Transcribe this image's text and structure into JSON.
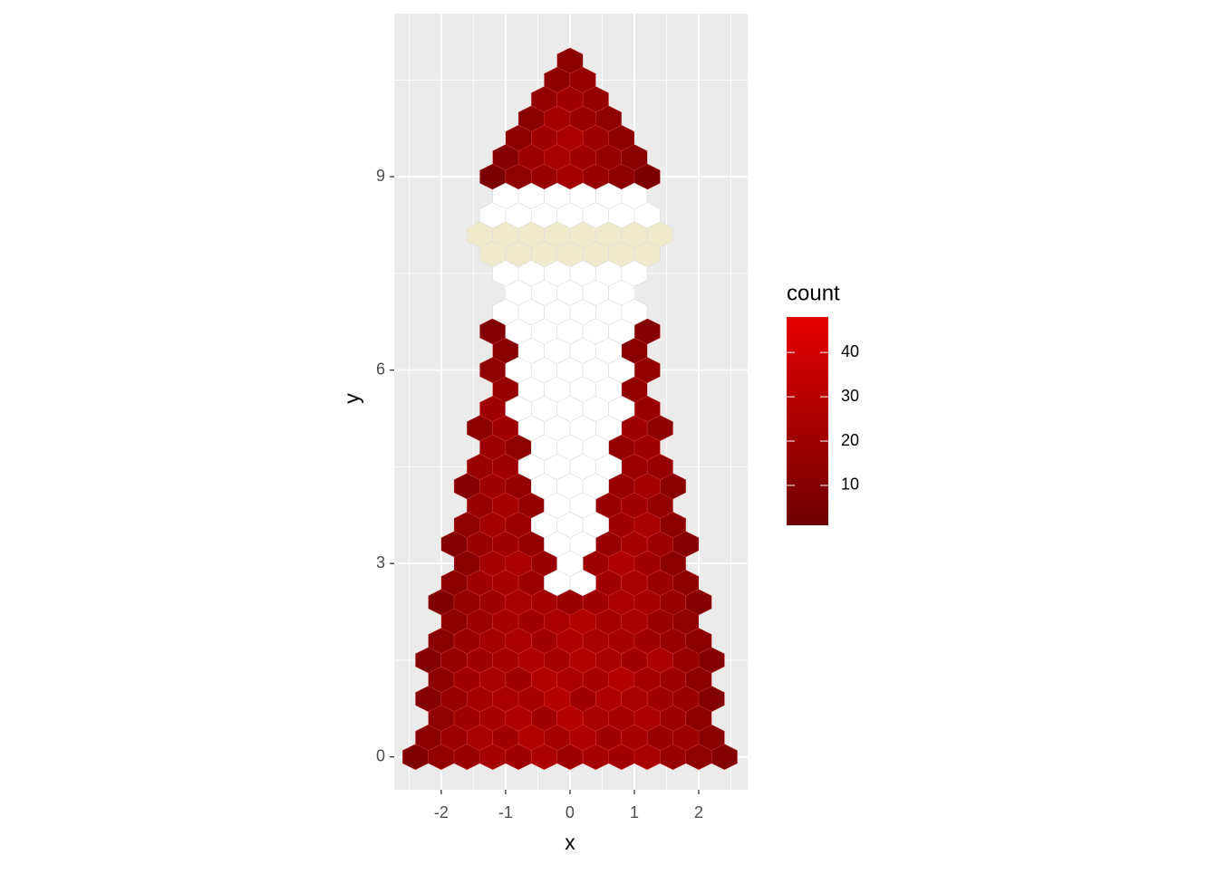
{
  "chart_data": {
    "type": "hexbin",
    "x_label": "x",
    "y_label": "y",
    "xlim": [
      -2.73,
      2.76
    ],
    "ylim": [
      -0.51,
      11.53
    ],
    "xticks": [
      -2,
      -1,
      0,
      1,
      2
    ],
    "yticks": [
      0,
      3,
      6,
      9
    ],
    "xminor": [
      -2.5,
      -1.5,
      -0.5,
      0.5,
      1.5,
      2.5
    ],
    "yminor": [
      1.5,
      4.5,
      7.5,
      10.5
    ],
    "grid": true,
    "binwidth": [
      0.4,
      0.3
    ],
    "legend": {
      "title": "count",
      "lim": [
        1,
        48
      ],
      "ticks": [
        10,
        20,
        30,
        40
      ],
      "low": "#6e0000",
      "high": "#e60000"
    },
    "layers": [
      {
        "rows": [
          {
            "y": 0,
            "x": [
              -2.4,
              -2.0,
              -1.6,
              -1.2,
              -0.8,
              -0.4,
              0,
              0.4,
              0.8,
              1.2,
              1.6,
              2.0,
              2.4
            ],
            "count": [
              8,
              15,
              18,
              22,
              20,
              25,
              19,
              23,
              21,
              24,
              17,
              14,
              9
            ]
          },
          {
            "y": 0.3,
            "x": [
              -2.2,
              -1.8,
              -1.4,
              -1.0,
              -0.6,
              -0.2,
              0.2,
              0.6,
              1.0,
              1.4,
              1.8,
              2.2
            ],
            "count": [
              12,
              19,
              24,
              21,
              27,
              22,
              26,
              20,
              23,
              18,
              20,
              11
            ]
          },
          {
            "y": 0.6,
            "x": [
              -2.0,
              -1.6,
              -1.2,
              -0.8,
              -0.4,
              0,
              0.4,
              0.8,
              1.2,
              1.6,
              2.0
            ],
            "count": [
              14,
              20,
              23,
              26,
              21,
              28,
              24,
              22,
              25,
              19,
              13
            ]
          },
          {
            "y": 0.9,
            "x": [
              -2.2,
              -1.8,
              -1.4,
              -1.0,
              -0.6,
              -0.2,
              0.2,
              0.6,
              1.0,
              1.4,
              1.8,
              2.2
            ],
            "count": [
              10,
              17,
              22,
              25,
              23,
              29,
              21,
              26,
              24,
              20,
              18,
              9
            ]
          },
          {
            "y": 1.2,
            "x": [
              -2.0,
              -1.6,
              -1.2,
              -0.8,
              -0.4,
              0,
              0.4,
              0.8,
              1.2,
              1.6,
              2.0
            ],
            "count": [
              13,
              21,
              24,
              20,
              27,
              25,
              23,
              28,
              22,
              19,
              12
            ]
          },
          {
            "y": 1.5,
            "x": [
              -2.2,
              -1.8,
              -1.4,
              -1.0,
              -0.6,
              -0.2,
              0.2,
              0.6,
              1.0,
              1.4,
              1.8,
              2.2
            ],
            "count": [
              9,
              16,
              20,
              23,
              26,
              22,
              27,
              24,
              21,
              25,
              17,
              10
            ]
          },
          {
            "y": 1.8,
            "x": [
              -2.0,
              -1.6,
              -1.2,
              -0.8,
              -0.4,
              0,
              0.4,
              0.8,
              1.2,
              1.6,
              2.0
            ],
            "count": [
              11,
              18,
              22,
              25,
              21,
              26,
              24,
              23,
              20,
              17,
              12
            ]
          },
          {
            "y": 2.1,
            "x": [
              -1.8,
              -1.4,
              -1.0,
              -0.6,
              -0.2,
              0.2,
              0.6,
              1.0,
              1.4,
              1.8
            ],
            "count": [
              13,
              19,
              23,
              21,
              25,
              27,
              22,
              24,
              18,
              14
            ]
          },
          {
            "y": 2.4,
            "x": [
              -2.0,
              -1.6,
              -1.2,
              -0.8,
              -0.4,
              0,
              0.4,
              0.8,
              1.2,
              1.6,
              2.0
            ],
            "count": [
              8,
              16,
              20,
              24,
              22,
              18,
              21,
              25,
              23,
              17,
              10
            ]
          },
          {
            "y": 2.7,
            "x": [
              -1.8,
              -1.4,
              -1.0,
              -0.6,
              0.6,
              1.0,
              1.4,
              1.8
            ],
            "count": [
              12,
              20,
              23,
              19,
              21,
              24,
              18,
              13
            ]
          },
          {
            "y": 3.0,
            "x": [
              -1.6,
              -1.2,
              -0.8,
              -0.4,
              0.4,
              0.8,
              1.2,
              1.6
            ],
            "count": [
              11,
              22,
              25,
              18,
              20,
              26,
              21,
              12
            ]
          },
          {
            "y": 3.3,
            "x": [
              -1.8,
              -1.4,
              -1.0,
              -0.6,
              0.6,
              1.0,
              1.4,
              1.8
            ],
            "count": [
              9,
              18,
              21,
              16,
              17,
              23,
              19,
              10
            ]
          },
          {
            "y": 3.6,
            "x": [
              -1.6,
              -1.2,
              -0.8,
              0.8,
              1.2,
              1.6
            ],
            "count": [
              14,
              22,
              19,
              20,
              24,
              13
            ]
          },
          {
            "y": 3.9,
            "x": [
              -1.4,
              -1.0,
              -0.6,
              0.6,
              1.0,
              1.4
            ],
            "count": [
              17,
              23,
              15,
              18,
              21,
              16
            ]
          },
          {
            "y": 4.2,
            "x": [
              -1.6,
              -1.2,
              -0.8,
              0.8,
              1.2,
              1.6
            ],
            "count": [
              10,
              21,
              16,
              17,
              22,
              11
            ]
          },
          {
            "y": 4.5,
            "x": [
              -1.4,
              -1.0,
              1.0,
              1.4
            ],
            "count": [
              18,
              20,
              19,
              17
            ]
          },
          {
            "y": 4.8,
            "x": [
              -1.2,
              -0.8,
              0.8,
              1.2
            ],
            "count": [
              19,
              14,
              15,
              20
            ]
          },
          {
            "y": 5.1,
            "x": [
              -1.4,
              -1.0,
              1.0,
              1.4
            ],
            "count": [
              12,
              21,
              20,
              13
            ]
          },
          {
            "y": 5.4,
            "x": [
              -1.2,
              1.2
            ],
            "count": [
              20,
              18
            ]
          },
          {
            "y": 5.7,
            "x": [
              -1.0,
              1.0
            ],
            "count": [
              17,
              16
            ]
          },
          {
            "y": 6.0,
            "x": [
              -1.2,
              1.2
            ],
            "count": [
              14,
              15
            ]
          },
          {
            "y": 6.3,
            "x": [
              -1.0,
              1.0
            ],
            "count": [
              11,
              12
            ]
          },
          {
            "y": 6.6,
            "x": [
              -1.2,
              1.2
            ],
            "count": [
              9,
              10
            ]
          },
          {
            "y": 9.0,
            "x": [
              -1.2,
              -0.8,
              -0.4,
              0,
              0.4,
              0.8,
              1.2
            ],
            "count": [
              6,
              14,
              18,
              22,
              17,
              13,
              7
            ]
          },
          {
            "y": 9.3,
            "x": [
              -1.0,
              -0.6,
              -0.2,
              0.2,
              0.6,
              1.0
            ],
            "count": [
              10,
              19,
              24,
              21,
              16,
              11
            ]
          },
          {
            "y": 9.6,
            "x": [
              -0.8,
              -0.4,
              0,
              0.4,
              0.8
            ],
            "count": [
              12,
              20,
              25,
              19,
              13
            ]
          },
          {
            "y": 9.9,
            "x": [
              -0.6,
              -0.2,
              0.2,
              0.6
            ],
            "count": [
              11,
              22,
              18,
              14
            ]
          },
          {
            "y": 10.2,
            "x": [
              -0.4,
              0,
              0.4
            ],
            "count": [
              15,
              21,
              16
            ]
          },
          {
            "y": 10.5,
            "x": [
              -0.2,
              0.2
            ],
            "count": [
              13,
              17
            ]
          },
          {
            "y": 10.8,
            "x": [
              0
            ],
            "count": [
              12
            ]
          }
        ]
      },
      {
        "fill": "#ffffff",
        "rows": [
          {
            "y": 2.7,
            "x": [
              -0.2,
              0.2
            ]
          },
          {
            "y": 3.0,
            "x": [
              0
            ]
          },
          {
            "y": 3.3,
            "x": [
              -0.2,
              0.2
            ]
          },
          {
            "y": 3.6,
            "x": [
              -0.4,
              0,
              0.4
            ]
          },
          {
            "y": 3.9,
            "x": [
              -0.2,
              0.2
            ]
          },
          {
            "y": 4.2,
            "x": [
              -0.4,
              0,
              0.4
            ]
          },
          {
            "y": 4.5,
            "x": [
              -0.6,
              -0.2,
              0.2,
              0.6
            ]
          },
          {
            "y": 4.8,
            "x": [
              -0.4,
              0,
              0.4
            ]
          },
          {
            "y": 5.1,
            "x": [
              -0.6,
              -0.2,
              0.2,
              0.6
            ]
          },
          {
            "y": 5.4,
            "x": [
              -0.8,
              -0.4,
              0,
              0.4,
              0.8
            ]
          },
          {
            "y": 5.7,
            "x": [
              -0.6,
              -0.2,
              0.2,
              0.6
            ]
          },
          {
            "y": 6.0,
            "x": [
              -0.8,
              -0.4,
              0,
              0.4,
              0.8
            ]
          },
          {
            "y": 6.3,
            "x": [
              -0.6,
              -0.2,
              0.2,
              0.6
            ]
          },
          {
            "y": 6.6,
            "x": [
              -0.8,
              -0.4,
              0,
              0.4,
              0.8
            ]
          },
          {
            "y": 6.9,
            "x": [
              -1.0,
              -0.6,
              -0.2,
              0.2,
              0.6,
              1.0
            ]
          },
          {
            "y": 7.2,
            "x": [
              -0.8,
              -0.4,
              0,
              0.4,
              0.8
            ]
          },
          {
            "y": 7.5,
            "x": [
              -1.0,
              -0.6,
              -0.2,
              0.2,
              0.6,
              1.0
            ]
          },
          {
            "y": 8.4,
            "x": [
              -1.2,
              -0.8,
              -0.4,
              0,
              0.4,
              0.8,
              1.2
            ]
          },
          {
            "y": 8.7,
            "x": [
              -1.0,
              -0.6,
              -0.2,
              0.2,
              0.6,
              1.0
            ]
          }
        ]
      },
      {
        "fill": "#efeacb",
        "rows": [
          {
            "y": 7.8,
            "x": [
              -1.2,
              -0.8,
              -0.4,
              0,
              0.4,
              0.8,
              1.2
            ]
          },
          {
            "y": 8.1,
            "x": [
              -1.4,
              -1.0,
              -0.6,
              -0.2,
              0.2,
              0.6,
              1.0,
              1.4
            ]
          }
        ]
      }
    ]
  }
}
